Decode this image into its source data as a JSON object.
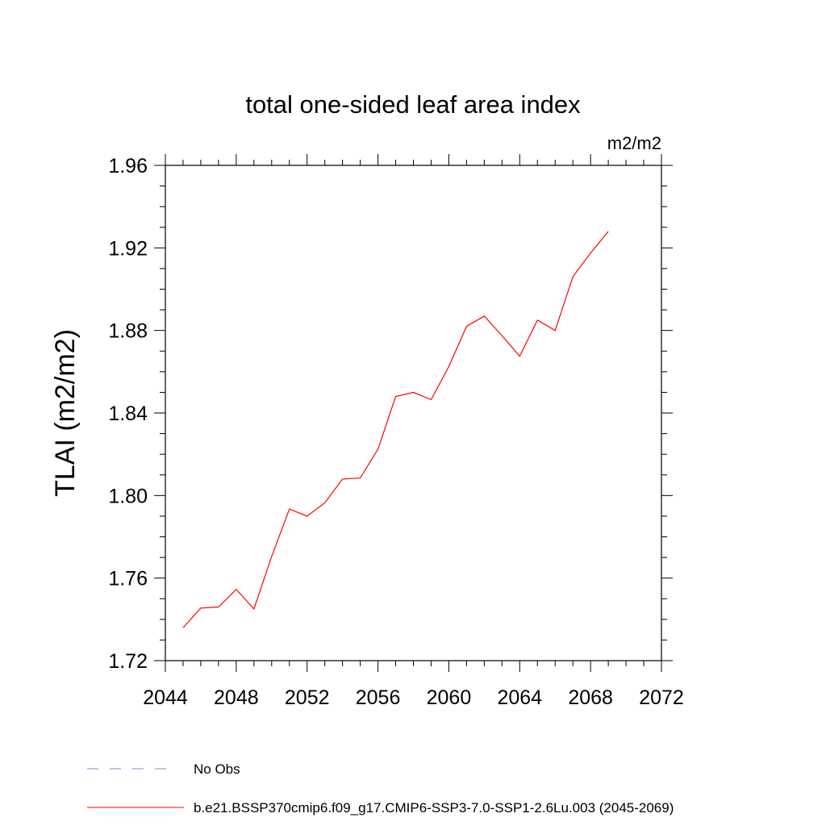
{
  "chart_data": {
    "type": "line",
    "title": "total one-sided leaf area index",
    "units_label": "m2/m2",
    "ylabel": "TLAI  (m2/m2)",
    "xlabel": "",
    "xlim": [
      2044,
      2072
    ],
    "ylim": [
      1.72,
      1.96
    ],
    "x_ticks": [
      "2044",
      "2048",
      "2052",
      "2056",
      "2060",
      "2064",
      "2068",
      "2072"
    ],
    "y_ticks": [
      "1.72",
      "1.76",
      "1.80",
      "1.84",
      "1.88",
      "1.92",
      "1.96"
    ],
    "grid": false,
    "legend_position": "bottom",
    "series": [
      {
        "name": "b.e21.BSSP370cmip6.f09_g17.CMIP6-SSP3-7.0-SSP1-2.6Lu.003 (2045-2069)",
        "color": "#ff0000",
        "line_style": "solid",
        "x": [
          2045,
          2046,
          2047,
          2048,
          2049,
          2050,
          2051,
          2052,
          2053,
          2054,
          2055,
          2056,
          2057,
          2058,
          2059,
          2060,
          2061,
          2062,
          2063,
          2064,
          2065,
          2066,
          2067,
          2068,
          2069
        ],
        "y": [
          1.736,
          1.7455,
          1.746,
          1.7545,
          1.745,
          1.7705,
          1.7935,
          1.79,
          1.7965,
          1.808,
          1.8085,
          1.8225,
          1.848,
          1.85,
          1.8465,
          1.8625,
          1.882,
          1.887,
          1.8775,
          1.8675,
          1.885,
          1.88,
          1.906,
          1.9175,
          1.928
        ]
      }
    ],
    "legend": [
      {
        "label": "No Obs",
        "color": "#8888cc",
        "line_style": "dashed"
      },
      {
        "label": "b.e21.BSSP370cmip6.f09_g17.CMIP6-SSP3-7.0-SSP1-2.6Lu.003 (2045-2069)",
        "color": "#ff0000",
        "line_style": "solid"
      }
    ]
  }
}
